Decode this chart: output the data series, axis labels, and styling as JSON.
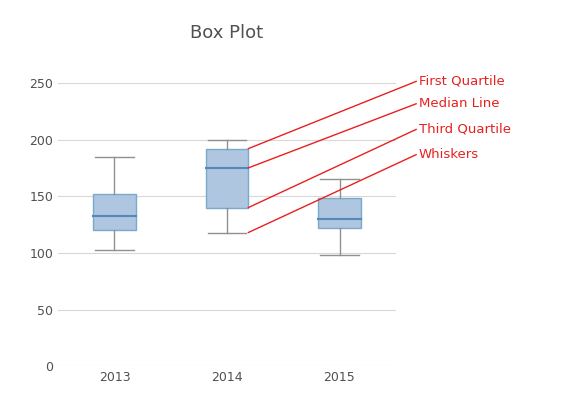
{
  "title": "Box Plot",
  "categories": [
    "2013",
    "2014",
    "2015"
  ],
  "boxes": [
    {
      "q1": 120,
      "median": 133,
      "q3": 152,
      "whisker_low": 103,
      "whisker_high": 185
    },
    {
      "q1": 140,
      "median": 175,
      "q3": 192,
      "whisker_low": 118,
      "whisker_high": 200
    },
    {
      "q1": 122,
      "median": 130,
      "q3": 148,
      "whisker_low": 98,
      "whisker_high": 165
    }
  ],
  "box_facecolor": "#aec6e0",
  "box_edgecolor": "#7aaac8",
  "median_color": "#5588b8",
  "whisker_color": "#909090",
  "ylim": [
    0,
    280
  ],
  "yticks": [
    0,
    50,
    100,
    150,
    200,
    250
  ],
  "background_color": "#ffffff",
  "grid_color": "#d8d8d8",
  "title_color": "#505050",
  "title_fontsize": 13,
  "tick_fontsize": 9,
  "annotation_labels": [
    "First Quartile",
    "Median Line",
    "Third Quartile",
    "Whiskers"
  ],
  "annotation_color": "#e82020",
  "annotation_fontsize": 9.5,
  "arrow_color": "#e82020",
  "box_width": 0.38
}
